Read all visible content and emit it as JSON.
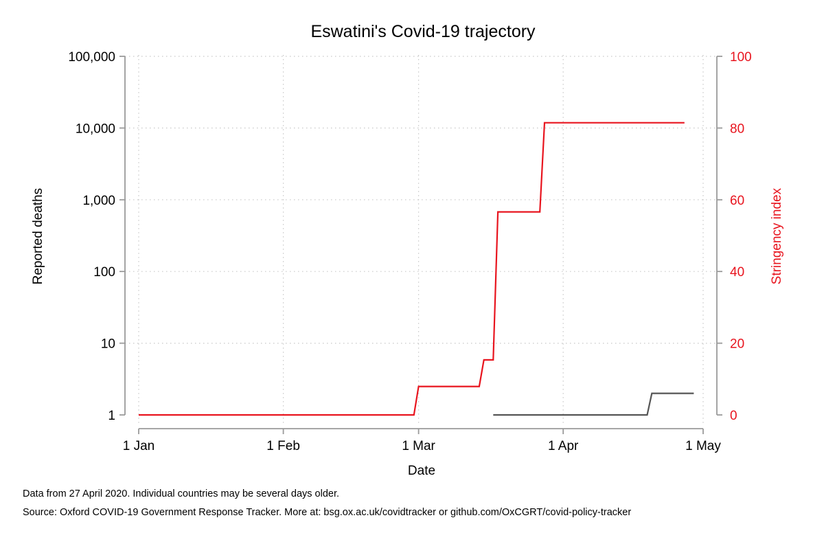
{
  "chart_data": {
    "type": "line",
    "title": "Eswatini's Covid-19 trajectory",
    "xlabel": "Date",
    "ylabel_left": "Reported deaths",
    "ylabel_right": "Stringency index",
    "x_tick_labels": [
      "1 Jan",
      "1 Feb",
      "1 Mar",
      "1 Apr",
      "1 May"
    ],
    "x_tick_days": [
      0,
      31,
      60,
      91,
      121
    ],
    "x_unit": "days since 1 Jan 2020",
    "xlim": [
      0,
      121
    ],
    "y_left_scale": "log",
    "y_left_ticks": [
      1,
      10,
      100,
      1000,
      10000,
      100000
    ],
    "y_left_tick_labels": [
      "1",
      "10",
      "100",
      "1,000",
      "10,000",
      "100,000"
    ],
    "y_left_lim": [
      1,
      100000
    ],
    "y_right_ticks": [
      0,
      20,
      40,
      60,
      80,
      100
    ],
    "y_right_tick_labels": [
      "0",
      "20",
      "40",
      "60",
      "80",
      "100"
    ],
    "y_right_lim": [
      0,
      100
    ],
    "grid": true,
    "series": [
      {
        "name": "Stringency index",
        "axis": "right",
        "color": "#e8141e",
        "points": [
          [
            0,
            0
          ],
          [
            59,
            0
          ],
          [
            60,
            7.94
          ],
          [
            73,
            7.94
          ],
          [
            74,
            15.34
          ],
          [
            76,
            15.34
          ],
          [
            77,
            56.61
          ],
          [
            86,
            56.61
          ],
          [
            87,
            81.48
          ],
          [
            117,
            81.48
          ]
        ]
      },
      {
        "name": "Reported deaths",
        "axis": "left",
        "color": "#555555",
        "points": [
          [
            76,
            1
          ],
          [
            109,
            1
          ],
          [
            110,
            2
          ],
          [
            119,
            2
          ]
        ]
      }
    ]
  },
  "footnotes": {
    "line1": "Data from 27 April 2020. Individual countries may be several days older.",
    "line2": "Source: Oxford COVID-19 Government Response Tracker. More at: bsg.ox.ac.uk/covidtracker or github.com/OxCGRT/covid-policy-tracker"
  }
}
